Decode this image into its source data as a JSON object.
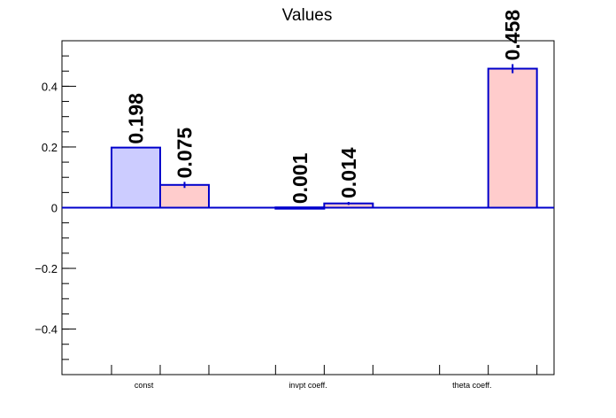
{
  "chart_data": {
    "type": "bar",
    "title": "Values",
    "categories": [
      "const",
      "invpt coeff.",
      "theta coeff."
    ],
    "ylim": [
      -0.55,
      0.55
    ],
    "yticks": [
      -0.4,
      -0.2,
      0,
      0.2,
      0.4
    ],
    "ytick_labels": [
      "−0.4",
      "−0.2",
      "0",
      "0.2",
      "0.4"
    ],
    "grid": false,
    "legend": "none",
    "series": [
      {
        "color": "#ccccff",
        "edge": "#0000cc",
        "values": [
          0.198,
          0.001,
          null
        ],
        "labels": [
          "0.198",
          "0.001",
          ""
        ],
        "errors": [
          0,
          0,
          0
        ]
      },
      {
        "color": "#ffcccc",
        "edge": "#0000cc",
        "values": [
          0.075,
          0.014,
          0.458
        ],
        "labels": [
          "0.075",
          "0.014",
          "0.458"
        ],
        "errors": [
          0.01,
          0.005,
          0.015
        ]
      }
    ]
  }
}
